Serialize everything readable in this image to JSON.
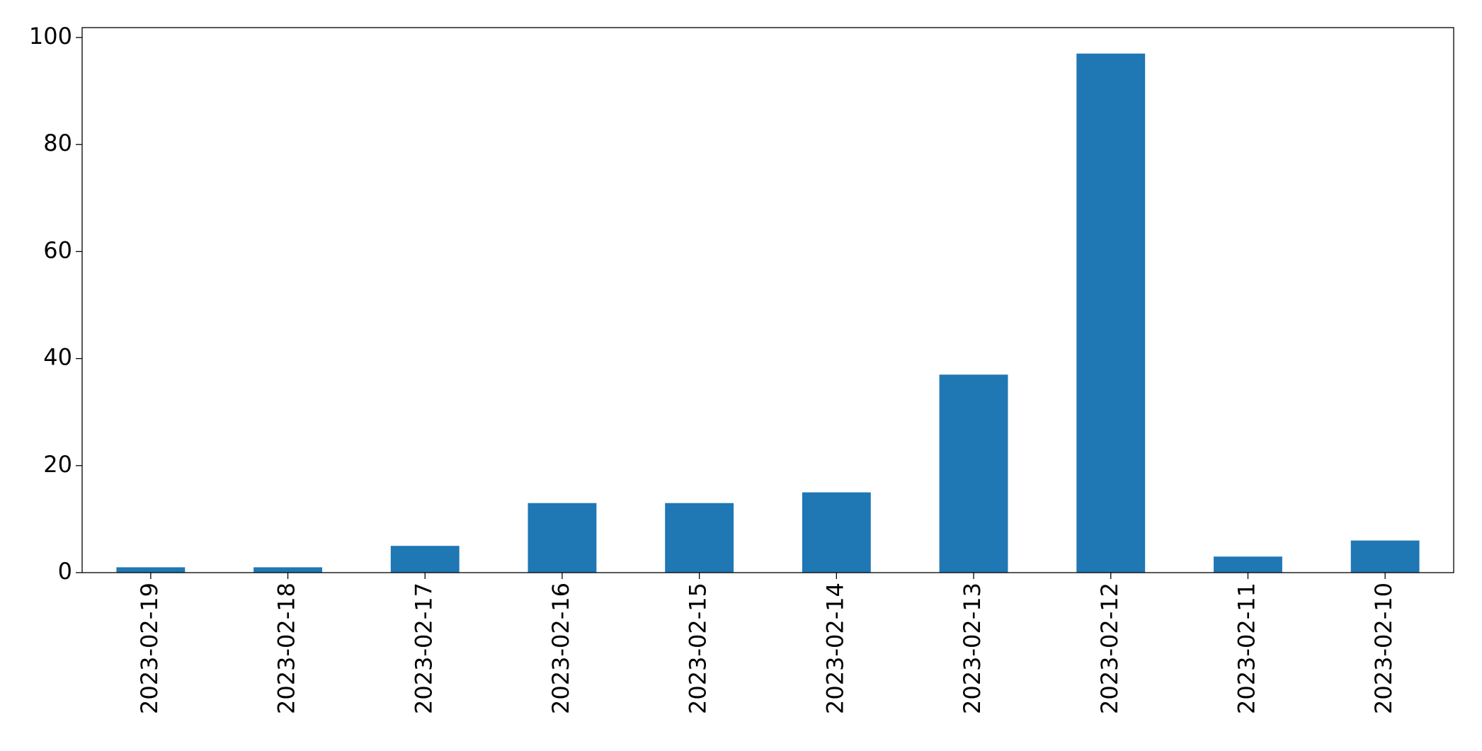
{
  "chart_data": {
    "type": "bar",
    "categories": [
      "2023-02-19",
      "2023-02-18",
      "2023-02-17",
      "2023-02-16",
      "2023-02-15",
      "2023-02-14",
      "2023-02-13",
      "2023-02-12",
      "2023-02-11",
      "2023-02-10"
    ],
    "values": [
      1,
      1,
      5,
      13,
      13,
      15,
      37,
      97,
      3,
      6
    ],
    "color": "#1f77b4",
    "ylim": [
      0,
      101.85
    ],
    "yticks": [
      0,
      20,
      40,
      60,
      80,
      100
    ],
    "grid": false
  }
}
